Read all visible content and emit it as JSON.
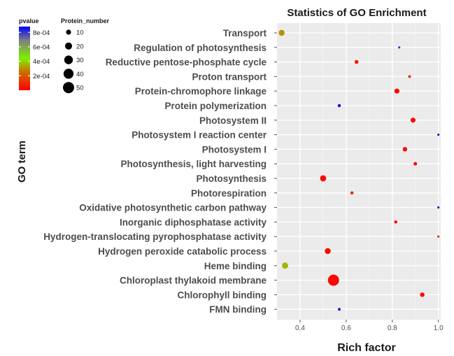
{
  "chart_data": {
    "type": "scatter",
    "title": "Statistics of GO Enrichment",
    "xlabel": "Rich factor",
    "ylabel": "GO term",
    "xlim": [
      0.3,
      1.01
    ],
    "xticks": [
      0.4,
      0.6,
      0.8,
      1.0
    ],
    "xtick_labels": [
      "0.4",
      "0.6",
      "0.8",
      "1.0"
    ],
    "grid": true,
    "legend_position": "top-left",
    "color_legend": {
      "title": "pvalue",
      "ticks": [
        0.0002,
        0.0004,
        0.0006,
        0.0008
      ],
      "tick_labels": [
        "2e-04",
        "4e-04",
        "6e-04",
        "8e-04"
      ],
      "range": [
        0,
        0.00088
      ],
      "colors": [
        "#ff0000",
        "#cf6a00",
        "#7ff000",
        "#7f7f7f",
        "#0000ff"
      ]
    },
    "size_legend": {
      "title": "Protein_number",
      "values": [
        10,
        20,
        30,
        40,
        50
      ],
      "labels": [
        "10",
        "20",
        "30",
        "40",
        "50"
      ]
    },
    "points": [
      {
        "term": "Transport",
        "rich_factor": 0.32,
        "pvalue": 0.0003,
        "protein_number": 14
      },
      {
        "term": "Regulation of photosynthesis",
        "rich_factor": 0.83,
        "pvalue": 0.0008,
        "protein_number": 2
      },
      {
        "term": "Reductive pentose-phosphate cycle",
        "rich_factor": 0.645,
        "pvalue": 5e-05,
        "protein_number": 6
      },
      {
        "term": "Proton transport",
        "rich_factor": 0.875,
        "pvalue": 9e-05,
        "protein_number": 3
      },
      {
        "term": "Protein-chromophore linkage",
        "rich_factor": 0.82,
        "pvalue": 2e-05,
        "protein_number": 10
      },
      {
        "term": "Protein polymerization",
        "rich_factor": 0.57,
        "pvalue": 0.00085,
        "protein_number": 4
      },
      {
        "term": "Photosystem II",
        "rich_factor": 0.89,
        "pvalue": 2e-05,
        "protein_number": 10
      },
      {
        "term": "Photosystem I reaction center",
        "rich_factor": 1.0,
        "pvalue": 0.00085,
        "protein_number": 2
      },
      {
        "term": "Photosystem I",
        "rich_factor": 0.855,
        "pvalue": 2e-05,
        "protein_number": 8
      },
      {
        "term": "Photosynthesis, light harvesting",
        "rich_factor": 0.9,
        "pvalue": 2e-05,
        "protein_number": 5
      },
      {
        "term": "Photosynthesis",
        "rich_factor": 0.5,
        "pvalue": 2e-05,
        "protein_number": 15
      },
      {
        "term": "Photorespiration",
        "rich_factor": 0.625,
        "pvalue": 8e-05,
        "protein_number": 4
      },
      {
        "term": "Oxidative photosynthetic carbon pathway",
        "rich_factor": 1.0,
        "pvalue": 0.00085,
        "protein_number": 2
      },
      {
        "term": "Inorganic diphosphatase activity",
        "rich_factor": 0.815,
        "pvalue": 4e-05,
        "protein_number": 4
      },
      {
        "term": "Hydrogen-translocating pyrophosphatase activity",
        "rich_factor": 1.0,
        "pvalue": 0.0001,
        "protein_number": 2
      },
      {
        "term": "Hydrogen peroxide catabolic process",
        "rich_factor": 0.52,
        "pvalue": 2e-05,
        "protein_number": 14
      },
      {
        "term": "Heme binding",
        "rich_factor": 0.335,
        "pvalue": 0.00035,
        "protein_number": 15
      },
      {
        "term": "Chloroplast thylakoid membrane",
        "rich_factor": 0.545,
        "pvalue": 2e-05,
        "protein_number": 50
      },
      {
        "term": "Chlorophyll binding",
        "rich_factor": 0.93,
        "pvalue": 2e-05,
        "protein_number": 8
      },
      {
        "term": "FMN binding",
        "rich_factor": 0.57,
        "pvalue": 0.00085,
        "protein_number": 3
      }
    ]
  }
}
